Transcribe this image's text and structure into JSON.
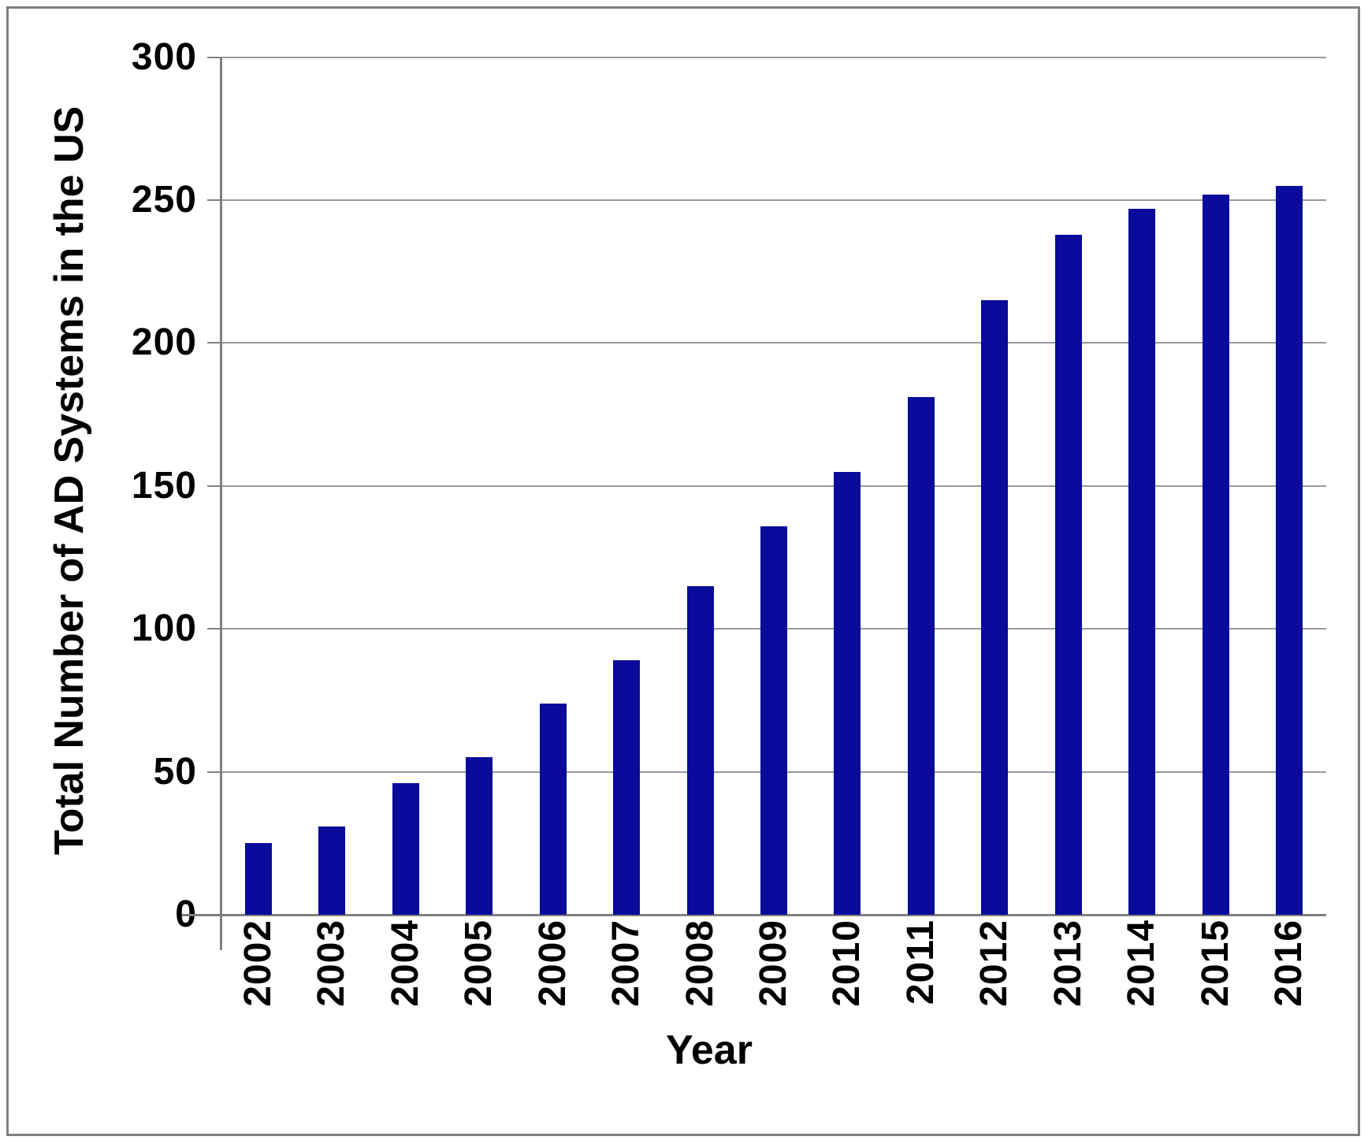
{
  "chart_data": {
    "type": "bar",
    "title": "",
    "categories": [
      "2002",
      "2003",
      "2004",
      "2005",
      "2006",
      "2007",
      "2008",
      "2009",
      "2010",
      "2011",
      "2012",
      "2013",
      "2014",
      "2015",
      "2016"
    ],
    "values": [
      25,
      31,
      46,
      55,
      74,
      89,
      115,
      136,
      155,
      181,
      215,
      238,
      247,
      252,
      255
    ],
    "xlabel": "Year",
    "ylabel": "Total Number of AD Systems in the US",
    "ylim": [
      0,
      300
    ],
    "yticks": [
      0,
      50,
      100,
      150,
      200,
      250,
      300
    ],
    "grid": true,
    "legend_position": "none",
    "bar_color": "#0a0a9b",
    "gridline_color": "#999999",
    "axis_color": "#808080",
    "border_color": "#7f7f7f"
  }
}
